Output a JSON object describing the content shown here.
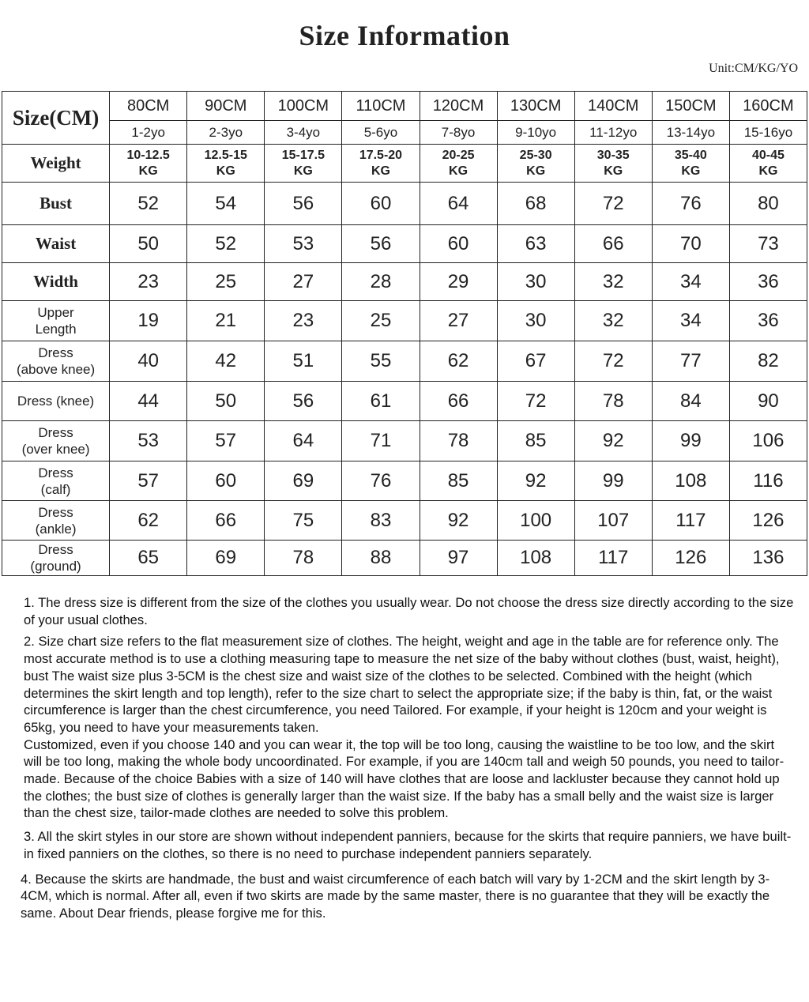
{
  "title": "Size Information",
  "unit": "Unit:CM/KG/YO",
  "table": {
    "corner_label": "Size(CM)",
    "sizes": [
      "80CM",
      "90CM",
      "100CM",
      "110CM",
      "120CM",
      "130CM",
      "140CM",
      "150CM",
      "160CM"
    ],
    "ages": [
      "1-2yo",
      "2-3yo",
      "3-4yo",
      "5-6yo",
      "7-8yo",
      "9-10yo",
      "11-12yo",
      "13-14yo",
      "15-16yo"
    ],
    "weight_label": "Weight",
    "weights": [
      {
        "range": "10-12.5",
        "unit": "KG"
      },
      {
        "range": "12.5-15",
        "unit": "KG"
      },
      {
        "range": "15-17.5",
        "unit": "KG"
      },
      {
        "range": "17.5-20",
        "unit": "KG"
      },
      {
        "range": "20-25",
        "unit": "KG"
      },
      {
        "range": "25-30",
        "unit": "KG"
      },
      {
        "range": "30-35",
        "unit": "KG"
      },
      {
        "range": "35-40",
        "unit": "KG"
      },
      {
        "range": "40-45",
        "unit": "KG"
      }
    ],
    "rows": [
      {
        "label": "Bust",
        "serif": true,
        "values": [
          "52",
          "54",
          "56",
          "60",
          "64",
          "68",
          "72",
          "76",
          "80"
        ]
      },
      {
        "label": "Waist",
        "serif": true,
        "values": [
          "50",
          "52",
          "53",
          "56",
          "60",
          "63",
          "66",
          "70",
          "73"
        ]
      },
      {
        "label": "Width",
        "serif": true,
        "values": [
          "23",
          "25",
          "27",
          "28",
          "29",
          "30",
          "32",
          "34",
          "36"
        ]
      },
      {
        "label": "Upper Length",
        "l1": "Upper",
        "l2": "Length",
        "values": [
          "19",
          "21",
          "23",
          "25",
          "27",
          "30",
          "32",
          "34",
          "36"
        ]
      },
      {
        "label": "Dress (above knee)",
        "l1": "Dress",
        "l2": "(above knee)",
        "values": [
          "40",
          "42",
          "51",
          "55",
          "62",
          "67",
          "72",
          "77",
          "82"
        ]
      },
      {
        "label": "Dress (knee)",
        "l1": "Dress (knee)",
        "l2": "",
        "values": [
          "44",
          "50",
          "56",
          "61",
          "66",
          "72",
          "78",
          "84",
          "90"
        ]
      },
      {
        "label": "Dress (over knee)",
        "l1": "Dress",
        "l2": "(over knee)",
        "values": [
          "53",
          "57",
          "64",
          "71",
          "78",
          "85",
          "92",
          "99",
          "106"
        ]
      },
      {
        "label": "Dress (calf)",
        "l1": "Dress",
        "l2": "(calf)",
        "values": [
          "57",
          "60",
          "69",
          "76",
          "85",
          "92",
          "99",
          "108",
          "116"
        ]
      },
      {
        "label": "Dress (ankle)",
        "l1": "Dress",
        "l2": "(ankle)",
        "values": [
          "62",
          "66",
          "75",
          "83",
          "92",
          "100",
          "107",
          "117",
          "126"
        ]
      },
      {
        "label": "Dress (ground)",
        "l1": "Dress",
        "l2": "(ground)",
        "values": [
          "65",
          "69",
          "78",
          "88",
          "97",
          "108",
          "117",
          "126",
          "136"
        ]
      }
    ]
  },
  "notes": {
    "n1": "1. The dress size is different from the size of the clothes you usually wear. Do not choose the dress size directly according to the size of your usual clothes.",
    "n2": "2. Size chart size refers to the flat measurement size of clothes. The height, weight and age in the table are for reference only. The most accurate method is to use a clothing measuring tape to measure the net size of the baby without clothes (bust, waist, height), bust The waist size plus 3-5CM is the chest size and waist size of the clothes to be selected. Combined with the height (which determines the skirt length and top length), refer to the size chart to select the appropriate size; if the baby is thin, fat, or the waist circumference is larger than the chest circumference, you need Tailored. For example, if your height is 120cm and your weight is 65kg, you need to have your measurements taken.",
    "n2b": "Customized, even if you choose 140 and you can wear it, the top will be too long, causing the waistline to be too low, and the skirt will be too long, making the whole body uncoordinated. For example, if you are 140cm tall and weigh 50 pounds, you need to tailor-made. Because of the choice Babies with a size of 140 will have clothes that are loose and lackluster because they cannot hold up the clothes; the bust size of clothes is generally larger than the waist size. If the baby has a small belly and the waist size is larger than the chest size, tailor-made clothes are needed to solve this problem.",
    "n3": "3. All the skirt styles in our store are shown without independent panniers, because for the skirts that require panniers, we have built-in fixed panniers on the clothes, so there is no need to purchase independent panniers separately.",
    "n4": "4. Because the skirts are handmade, the bust and waist circumference of each batch will vary by 1-2CM and the skirt length by 3-4CM, which is normal. After all, even if two skirts are made by the same master, there is no guarantee that they will be exactly the same. About Dear friends, please forgive me for this."
  }
}
